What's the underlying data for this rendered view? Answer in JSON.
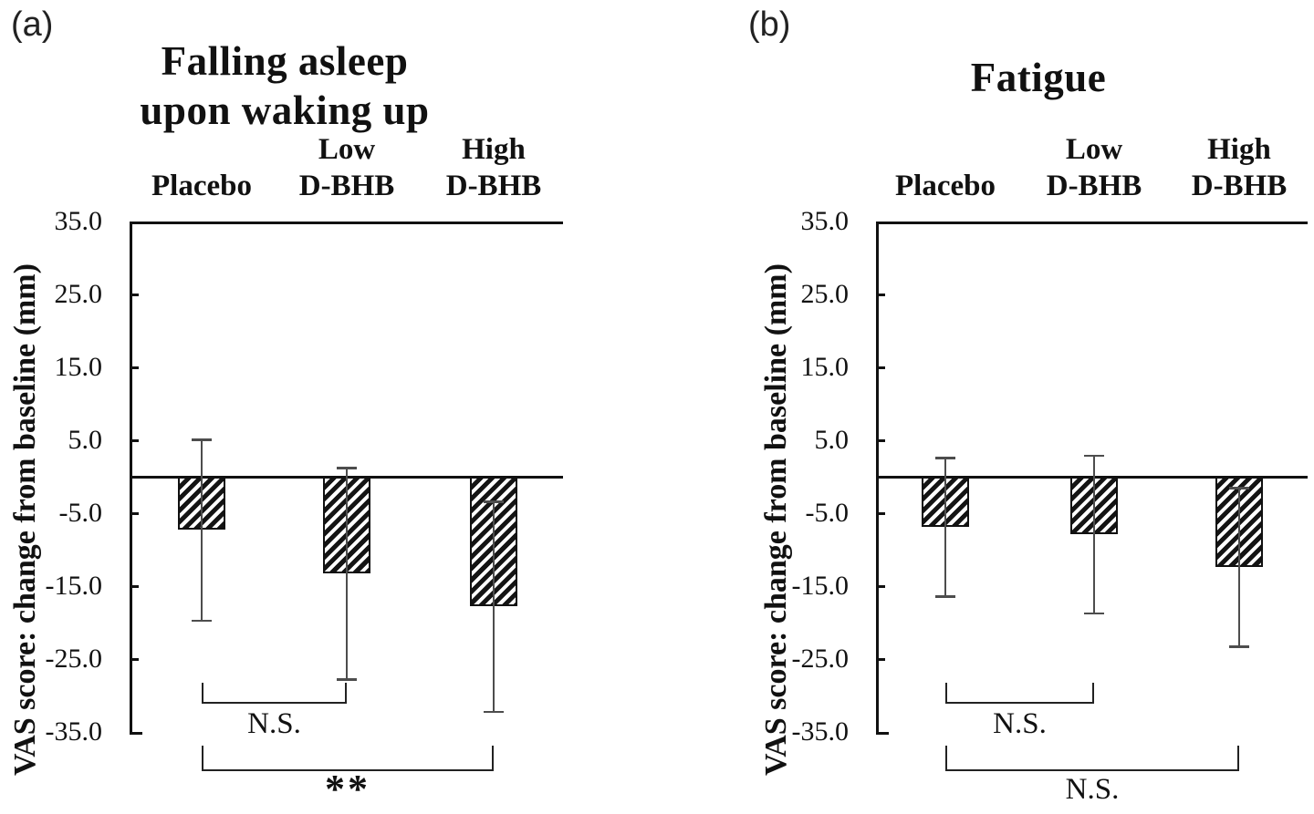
{
  "colors": {
    "ink": "#111111",
    "error_bar": "#4d4d4d",
    "background": "#ffffff"
  },
  "chart_data": [
    {
      "type": "bar",
      "panel_label": "(a)",
      "title_lines": [
        "Falling asleep",
        "upon waking up"
      ],
      "ylabel": "VAS score: change from baseline (mm)",
      "categories": [
        [
          "Placebo"
        ],
        [
          "Low",
          "D-BHB"
        ],
        [
          "High",
          "D-BHB"
        ]
      ],
      "values": [
        -7.3,
        -13.3,
        -17.8
      ],
      "errors": [
        12.4,
        14.5,
        14.4
      ],
      "ylim": [
        -35,
        35
      ],
      "ytick_step": 10,
      "ytick_labels": [
        "35.0",
        "25.0",
        "15.0",
        "5.0",
        "-5.0",
        "-15.0",
        "-25.0",
        "-35.0"
      ],
      "grid": false,
      "legend": "none",
      "brackets": [
        {
          "from": 0,
          "to": 1,
          "label": "N.S."
        },
        {
          "from": 0,
          "to": 2,
          "label": "**"
        }
      ]
    },
    {
      "type": "bar",
      "panel_label": "(b)",
      "title_lines": [
        "Fatigue"
      ],
      "ylabel": "VAS score: change from baseline (mm)",
      "categories": [
        [
          "Placebo"
        ],
        [
          "Low",
          "D-BHB"
        ],
        [
          "High",
          "D-BHB"
        ]
      ],
      "values": [
        -6.9,
        -7.9,
        -12.4
      ],
      "errors": [
        9.5,
        10.8,
        10.9
      ],
      "ylim": [
        -35,
        35
      ],
      "ytick_step": 10,
      "ytick_labels": [
        "35.0",
        "25.0",
        "15.0",
        "5.0",
        "-5.0",
        "-15.0",
        "-25.0",
        "-35.0"
      ],
      "grid": false,
      "legend": "none",
      "brackets": [
        {
          "from": 0,
          "to": 1,
          "label": "N.S."
        },
        {
          "from": 0,
          "to": 2,
          "label": "N.S."
        }
      ]
    }
  ]
}
